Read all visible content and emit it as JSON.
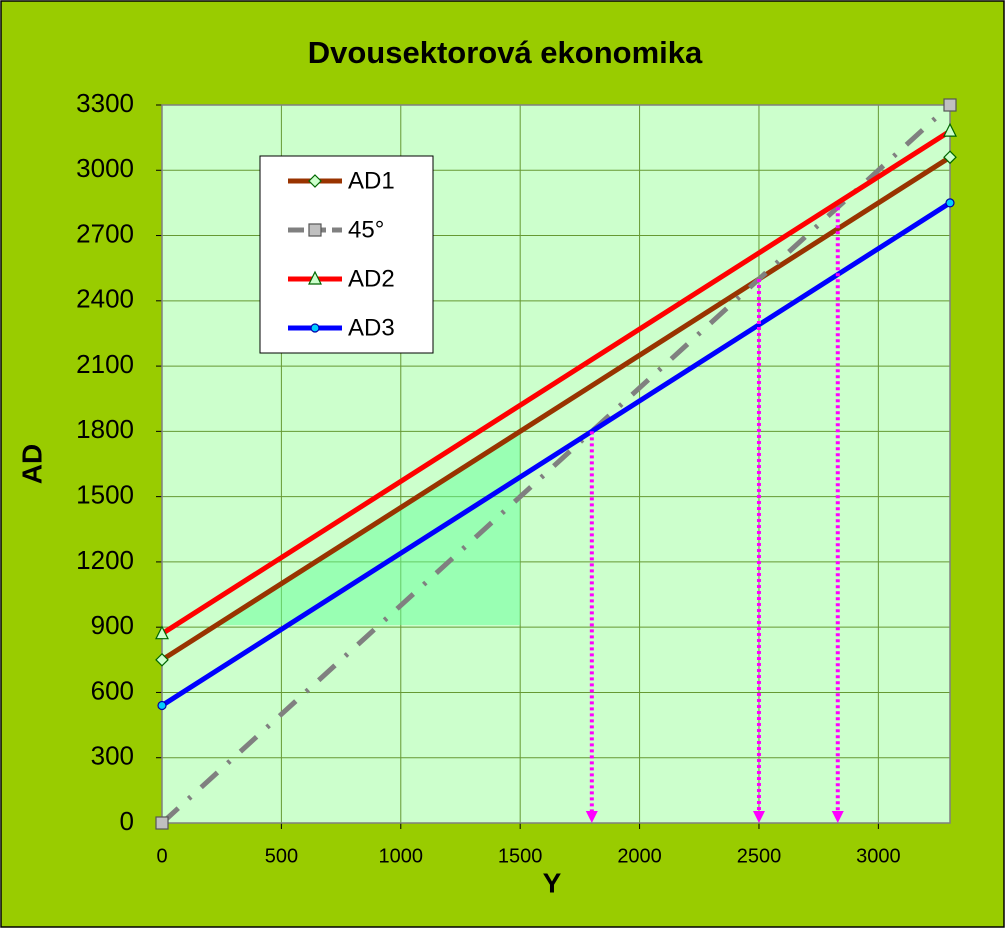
{
  "chart_data": {
    "type": "line",
    "title": "Dvousektorová ekonomika",
    "x_label": "Y",
    "y_label": "AD",
    "xlim": [
      0,
      3300
    ],
    "ylim": [
      0,
      3300
    ],
    "xticks": [
      0,
      500,
      1000,
      1500,
      2000,
      2500,
      3000
    ],
    "yticks": [
      0,
      300,
      600,
      900,
      1200,
      1500,
      1800,
      2100,
      2400,
      2700,
      3000,
      3300
    ],
    "grid": true,
    "legend": "upper left",
    "x": [
      0,
      3300
    ],
    "series": [
      {
        "name": "AD1",
        "color": "#993300",
        "marker": "diamond",
        "values": [
          750,
          3060
        ]
      },
      {
        "name": "45°",
        "color": "#808080",
        "marker": "square",
        "dashed": true,
        "values": [
          0,
          3300
        ]
      },
      {
        "name": "AD2",
        "color": "#ff0000",
        "marker": "triangle",
        "values": [
          870,
          3180
        ]
      },
      {
        "name": "AD3",
        "color": "#0000ff",
        "marker": "circle",
        "values": [
          540,
          2850
        ]
      }
    ],
    "arrows": {
      "color": "#ff00ff",
      "x": [
        1800,
        2500,
        2830
      ],
      "y": [
        1800,
        2500,
        2830
      ]
    },
    "triangle": {
      "color": "#66ff99",
      "x": [
        229,
        1500,
        1500
      ],
      "y": [
        910,
        910,
        1800
      ]
    }
  }
}
